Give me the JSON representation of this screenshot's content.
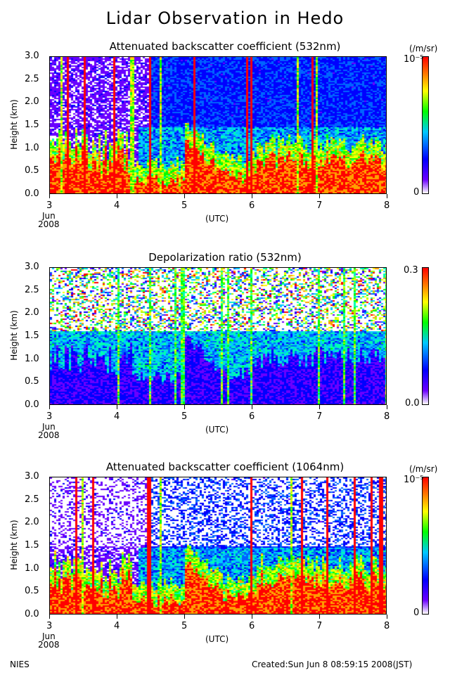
{
  "title": "Lidar Observation in Hedo",
  "footer_left": "NIES",
  "footer_right": "Created:Sun Jun  8 08:59:15 2008(JST)",
  "x_axis": {
    "label": "(UTC)",
    "ticks": [
      "3",
      "4",
      "5",
      "6",
      "7",
      "8"
    ],
    "start_month": "Jun",
    "start_year": "2008"
  },
  "y_axis": {
    "label": "Height (km)",
    "ticks": [
      "0.0",
      "0.5",
      "1.0",
      "1.5",
      "2.0",
      "2.5",
      "3.0"
    ]
  },
  "panels": [
    {
      "title": "Attenuated backscatter coefficient (532nm)",
      "cbar_unit": "(/m/sr)",
      "cbar_max": "10⁻⁵",
      "cbar_min": "0"
    },
    {
      "title": "Depolarization ratio (532nm)",
      "cbar_unit": "",
      "cbar_max": "0.3",
      "cbar_min": "0.0"
    },
    {
      "title": "Attenuated backscatter coefficient (1064nm)",
      "cbar_unit": "(/m/sr)",
      "cbar_max": "10⁻⁵",
      "cbar_min": "0"
    }
  ],
  "chart_data": [
    {
      "type": "heatmap",
      "title": "Attenuated backscatter coefficient (532nm)",
      "xlabel": "(UTC)",
      "ylabel": "Height (km)",
      "xlim": [
        3,
        8
      ],
      "ylim": [
        0.0,
        3.0
      ],
      "colorbar": {
        "min": 0,
        "max": "1e-5",
        "unit": "(/m/sr)"
      },
      "colormap": [
        "#ffffff",
        "#0000ff",
        "#00c8ff",
        "#00ff00",
        "#ffff00",
        "#ff0000"
      ]
    },
    {
      "type": "heatmap",
      "title": "Depolarization ratio (532nm)",
      "xlabel": "(UTC)",
      "ylabel": "Height (km)",
      "xlim": [
        3,
        8
      ],
      "ylim": [
        0.0,
        3.0
      ],
      "colorbar": {
        "min": 0.0,
        "max": 0.3
      },
      "colormap": [
        "#ffffff",
        "#0000ff",
        "#00c8ff",
        "#00ff00",
        "#ffff00",
        "#ff0000"
      ]
    },
    {
      "type": "heatmap",
      "title": "Attenuated backscatter coefficient (1064nm)",
      "xlabel": "(UTC)",
      "ylabel": "Height (km)",
      "xlim": [
        3,
        8
      ],
      "ylim": [
        0.0,
        3.0
      ],
      "colorbar": {
        "min": 0,
        "max": "1e-5",
        "unit": "(/m/sr)"
      },
      "colormap": [
        "#ffffff",
        "#0000ff",
        "#00c8ff",
        "#00ff00",
        "#ffff00",
        "#ff0000"
      ]
    }
  ]
}
